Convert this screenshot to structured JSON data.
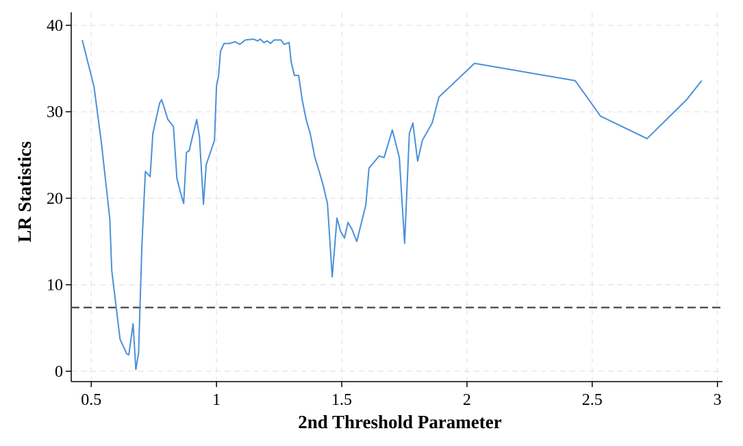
{
  "chart_data": {
    "type": "line",
    "x_label": "2nd Threshold Parameter",
    "y_label": "LR Statistics",
    "x": [
      0.464,
      0.511,
      0.541,
      0.574,
      0.582,
      0.615,
      0.642,
      0.65,
      0.667,
      0.678,
      0.689,
      0.702,
      0.716,
      0.735,
      0.746,
      0.773,
      0.781,
      0.806,
      0.828,
      0.842,
      0.855,
      0.869,
      0.88,
      0.891,
      0.904,
      0.921,
      0.932,
      0.948,
      0.959,
      0.992,
      1.0,
      1.008,
      1.016,
      1.03,
      1.052,
      1.074,
      1.093,
      1.115,
      1.148,
      1.164,
      1.175,
      1.189,
      1.202,
      1.216,
      1.23,
      1.257,
      1.27,
      1.29,
      1.298,
      1.311,
      1.328,
      1.342,
      1.358,
      1.374,
      1.393,
      1.41,
      1.426,
      1.443,
      1.462,
      1.481,
      1.495,
      1.511,
      1.525,
      1.541,
      1.56,
      1.596,
      1.609,
      1.65,
      1.669,
      1.702,
      1.73,
      1.751,
      1.77,
      1.784,
      1.803,
      1.822,
      1.861,
      1.888,
      2.03,
      2.432,
      2.533,
      2.719,
      2.877,
      2.937
    ],
    "series": [
      {
        "name": "LR",
        "color": "#4a90d9",
        "values": [
          38.3,
          32.9,
          26.3,
          17.6,
          11.6,
          3.7,
          2.0,
          1.9,
          5.5,
          0.2,
          2.1,
          14.4,
          23.1,
          22.5,
          27.5,
          31.0,
          31.4,
          29.1,
          28.3,
          22.3,
          20.8,
          19.4,
          25.3,
          25.5,
          27.1,
          29.1,
          27.1,
          19.3,
          23.9,
          26.7,
          33.0,
          34.1,
          37.0,
          37.9,
          37.9,
          38.1,
          37.8,
          38.3,
          38.4,
          38.2,
          38.4,
          38.0,
          38.2,
          37.9,
          38.3,
          38.3,
          37.8,
          38.0,
          35.8,
          34.2,
          34.2,
          31.4,
          29.1,
          27.5,
          24.7,
          23.1,
          21.5,
          19.4,
          10.9,
          17.7,
          16.2,
          15.4,
          17.2,
          16.4,
          15.0,
          19.2,
          23.5,
          24.9,
          24.7,
          27.9,
          24.7,
          14.8,
          27.5,
          28.7,
          24.3,
          26.7,
          28.7,
          31.7,
          35.6,
          33.6,
          29.5,
          26.9,
          31.4,
          33.6
        ]
      }
    ],
    "reference_line": 7.37,
    "reference_color": "#555555",
    "xlim": [
      0.42,
      3.02
    ],
    "xticks": [
      0.5,
      1,
      1.5,
      2,
      2.5,
      3
    ],
    "ylim": [
      -1.2,
      41.5
    ],
    "yticks": [
      0,
      10,
      20,
      30,
      40
    ],
    "grid": true
  }
}
